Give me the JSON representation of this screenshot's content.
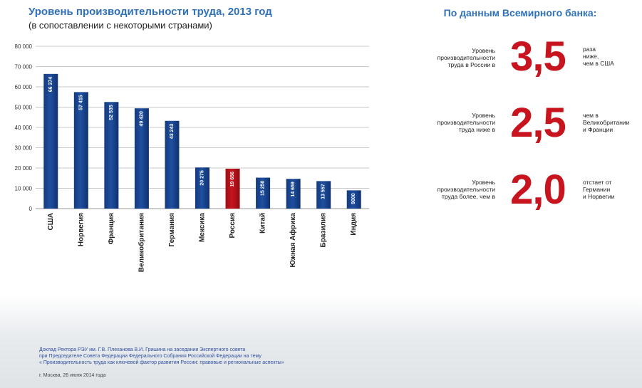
{
  "chart_data": {
    "type": "bar",
    "title": "Уровень производительности труда, 2013 год",
    "subtitle": "(в сопоставлении с некоторыми странами)",
    "categories": [
      "США",
      "Норвегия",
      "Франция",
      "Великобритания",
      "Германия",
      "Мексика",
      "Россия",
      "Китай",
      "Южная Африка",
      "Бразилия",
      "Индия"
    ],
    "values": [
      66374,
      57415,
      52535,
      49420,
      43243,
      20275,
      19656,
      15250,
      14659,
      13557,
      9000
    ],
    "value_labels": [
      "66 374",
      "57 415",
      "52 535",
      "49 420",
      "43 243",
      "20 275",
      "19 656",
      "15 250",
      "14 659",
      "13 557",
      "9000"
    ],
    "ytick_labels": [
      "0",
      "10 000",
      "20 000",
      "30 000",
      "40 000",
      "50 000",
      "60 000",
      "70 000",
      "80 000"
    ],
    "ylim": [
      0,
      80000
    ],
    "grid": true,
    "bar_color": "#1f4fa0",
    "highlight_category": "Россия",
    "highlight_color": "#c8141e"
  },
  "world_bank": {
    "title": "По данным Всемирного банка:",
    "stats": [
      {
        "pre": [
          "Уровень",
          "производительности",
          "труда в России в"
        ],
        "value": "3,5",
        "post": [
          "раза",
          "ниже,",
          "чем в США"
        ]
      },
      {
        "pre": [
          "Уровень",
          "производительности",
          "труда ниже в"
        ],
        "value": "2,5",
        "post": [
          "чем в",
          "Великобритании",
          "и Франции"
        ]
      },
      {
        "pre": [
          "Уровень",
          "производительности",
          "труда более, чем в"
        ],
        "value": "2,0",
        "post": [
          "отстает от",
          "Германии",
          "и Норвегии"
        ]
      }
    ]
  },
  "footer": {
    "lines": [
      "Доклад Ректора РЭУ им. Г.В. Плеханова В.И. Гришина на заседании Экспертного совета",
      "при Председателе Совета Федерации Федерального Собрания Российской Федерации на тему",
      "« Производительность труда как ключевой фактор развития России: правовые и региональные аспекты»"
    ],
    "date": "г. Москва, 26 июня 2014 года"
  }
}
